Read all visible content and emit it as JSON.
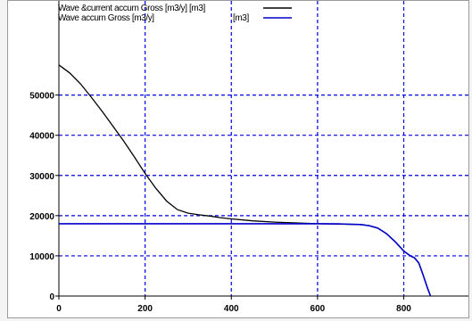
{
  "chart_data": {
    "type": "line",
    "title": "",
    "xlabel": "",
    "ylabel": "",
    "xlim": [
      0,
      950
    ],
    "ylim": [
      0,
      65000
    ],
    "x_ticks": [
      0,
      200,
      400,
      600,
      800
    ],
    "y_ticks": [
      0,
      10000,
      20000,
      30000,
      40000,
      50000
    ],
    "grid": true,
    "legend_position": "top-left",
    "series": [
      {
        "name": "Wave &current accum Gross [m3/y] [m3]",
        "color": "#000000",
        "x": [
          0,
          25,
          50,
          75,
          100,
          125,
          150,
          175,
          200,
          225,
          250,
          275,
          300,
          325,
          350,
          375,
          400,
          450,
          500,
          550,
          600,
          650,
          700,
          720,
          740,
          760,
          780,
          800,
          815,
          825,
          835,
          845,
          855,
          862
        ],
        "y": [
          57500,
          55500,
          52800,
          49500,
          46000,
          42300,
          38600,
          34600,
          30500,
          26800,
          23600,
          21500,
          20600,
          20200,
          19900,
          19500,
          19200,
          18700,
          18400,
          18200,
          18000,
          17900,
          17800,
          17500,
          16900,
          15500,
          13500,
          11200,
          10000,
          9500,
          8200,
          5200,
          2000,
          0
        ]
      },
      {
        "name": "Wave accum Gross [m3/y]",
        "unit": "[m3]",
        "color": "#0000cc",
        "x": [
          0,
          100,
          200,
          300,
          400,
          500,
          600,
          650,
          700,
          720,
          740,
          760,
          780,
          800,
          815,
          825,
          835,
          845,
          855,
          862
        ],
        "y": [
          18000,
          18000,
          18000,
          18000,
          18000,
          18000,
          18000,
          17950,
          17800,
          17500,
          16900,
          15500,
          13500,
          11200,
          10000,
          9500,
          8200,
          5200,
          2000,
          0
        ]
      }
    ]
  }
}
